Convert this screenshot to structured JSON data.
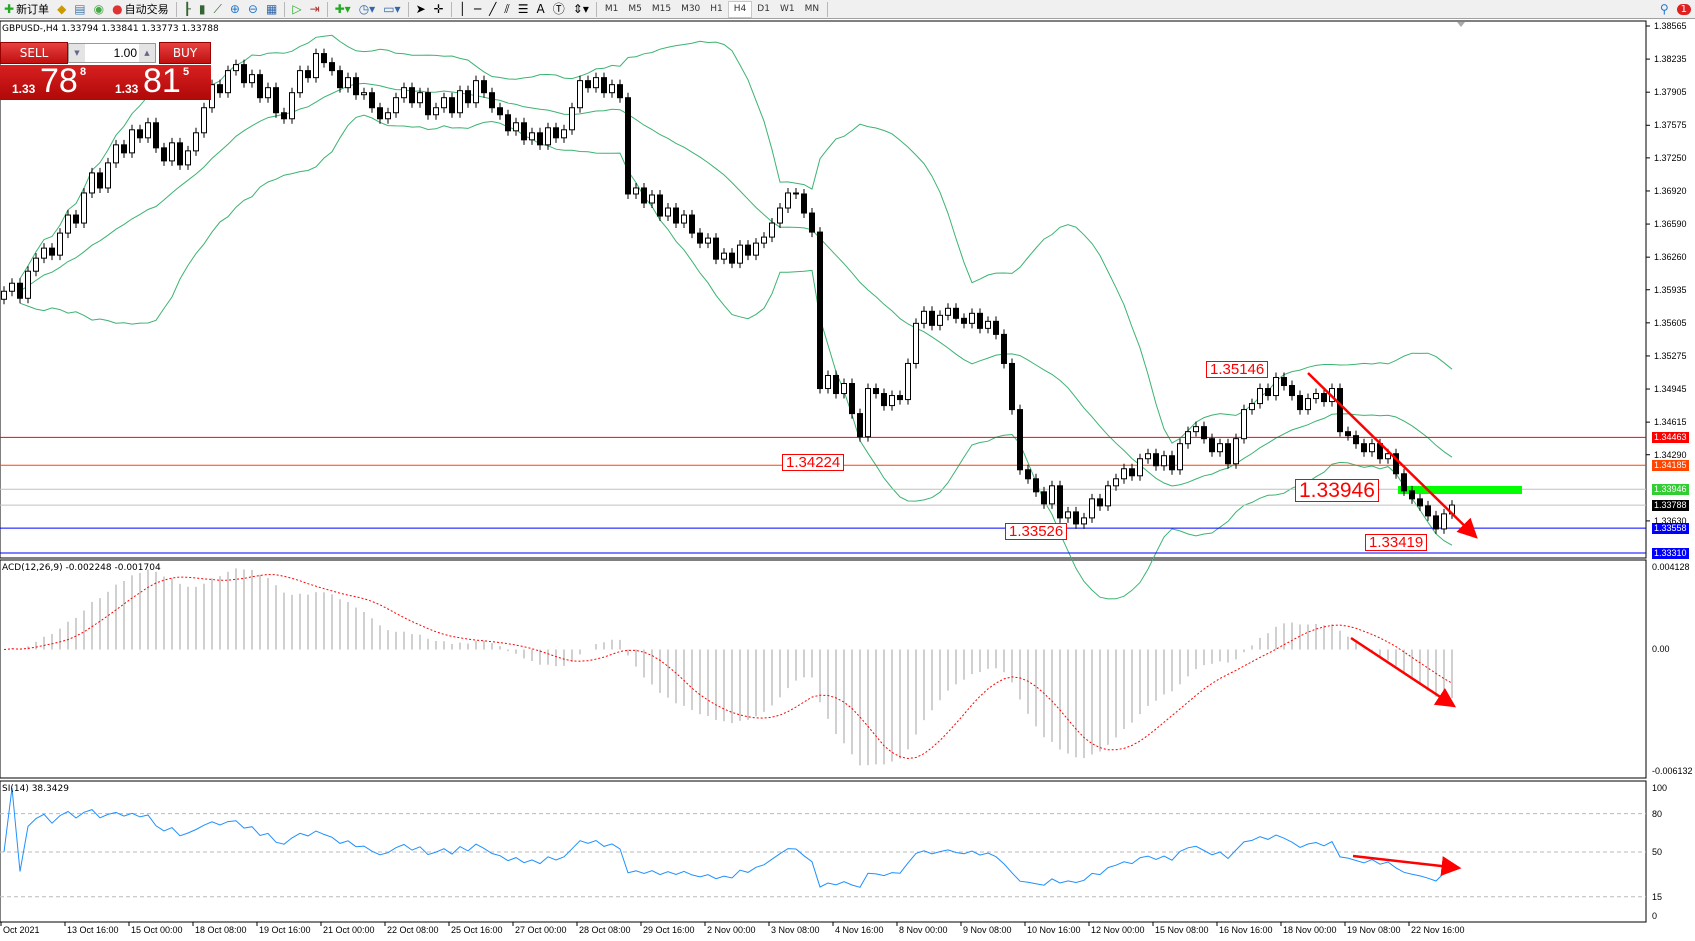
{
  "toolbar": {
    "new_order": "新订单",
    "auto_trading": "自动交易",
    "icons": [
      "new-order-icon",
      "market-watch-icon",
      "data-window-icon",
      "signals-icon",
      "auto-trading-icon",
      "bar-chart-icon",
      "candlestick-icon",
      "line-chart-icon",
      "zoom-in-icon",
      "zoom-out-icon",
      "tile-windows-icon",
      "chart-shift-icon",
      "autoscroll-icon",
      "indicators-icon",
      "periods-icon",
      "templates-icon",
      "cursor-icon",
      "crosshair-icon",
      "vertical-line-icon",
      "horizontal-line-icon",
      "trendline-icon",
      "equidistant-channel-icon",
      "fibonacci-icon",
      "text-icon",
      "text-label-icon",
      "arrows-icon"
    ],
    "timeframes": [
      "M1",
      "M5",
      "M15",
      "M30",
      "H1",
      "H4",
      "D1",
      "W1",
      "MN"
    ],
    "active_timeframe": "H4",
    "notification_count": "1"
  },
  "chart": {
    "header": "GBPUSD-,H4  1.33794 1.33841 1.33773 1.33788",
    "trade_panel": {
      "sell": "SELL",
      "buy": "BUY",
      "lot": "1.00",
      "bid_small": "1.33",
      "bid_big": "78",
      "bid_sup": "8",
      "ask_small": "1.33",
      "ask_big": "81",
      "ask_sup": "5"
    },
    "macd_label": "ACD(12,26,9) -0.002248 -0.001704",
    "rsi_label": "SI(14) 38.3429",
    "price_ticks": [
      "1.38565",
      "1.38235",
      "1.37905",
      "1.37575",
      "1.37250",
      "1.36920",
      "1.36590",
      "1.36260",
      "1.35935",
      "1.35605",
      "1.35275",
      "1.34945",
      "1.34615",
      "1.34290",
      "1.33630"
    ],
    "price_range": [
      1.3331,
      1.38565
    ],
    "hlines": [
      {
        "price": "1.34463",
        "color": "#ff0000",
        "label_bg": "#ff0000",
        "label_fg": "#ffffff"
      },
      {
        "price": "1.34185",
        "color": "#ff4500",
        "label_bg": "#ff4500",
        "label_fg": "#ffffff"
      },
      {
        "price": "1.33946",
        "color": "#c0c0c0",
        "label_bg": "#32cd32",
        "label_fg": "#ffffff"
      },
      {
        "price": "1.33788",
        "color": "#c0c0c0",
        "label_bg": "#000000",
        "label_fg": "#ffffff"
      },
      {
        "price": "1.33558",
        "color": "#0000ff",
        "label_bg": "#0000ff",
        "label_fg": "#ffffff"
      },
      {
        "price": "1.33310",
        "color": "#0000ff",
        "label_bg": "#0000ff",
        "label_fg": "#ffffff"
      }
    ],
    "annotations": [
      "1.35146",
      "1.34224",
      "1.33526",
      "1.33946",
      "1.33419"
    ],
    "macd_ticks": [
      "0.004128",
      "0.00",
      "-0.006132"
    ],
    "macd_range": [
      -0.006132,
      0.004128
    ],
    "rsi_ticks": [
      "100",
      "80",
      "50",
      "15",
      "0"
    ],
    "time_labels": [
      "Oct 2021",
      "13 Oct 16:00",
      "15 Oct 00:00",
      "18 Oct 08:00",
      "19 Oct 16:00",
      "21 Oct 00:00",
      "22 Oct 08:00",
      "25 Oct 16:00",
      "27 Oct 00:00",
      "28 Oct 08:00",
      "29 Oct 16:00",
      "2 Nov 00:00",
      "3 Nov 08:00",
      "4 Nov 16:00",
      "8 Nov 00:00",
      "9 Nov 08:00",
      "10 Nov 16:00",
      "12 Nov 00:00",
      "15 Nov 08:00",
      "16 Nov 16:00",
      "18 Nov 00:00",
      "19 Nov 08:00",
      "22 Nov 16:00"
    ],
    "colors": {
      "bands": "#3cb371",
      "macd_hist": "#c0c0c0",
      "macd_signal": "#ff0000",
      "rsi": "#1e90ff",
      "annotation": "#ff0000",
      "zone": "#00ff00"
    },
    "closes": [
      1.3592,
      1.36,
      1.3585,
      1.3612,
      1.3625,
      1.3635,
      1.3628,
      1.365,
      1.3668,
      1.366,
      1.369,
      1.371,
      1.3695,
      1.372,
      1.3738,
      1.373,
      1.3753,
      1.3745,
      1.376,
      1.3735,
      1.3722,
      1.374,
      1.3718,
      1.3732,
      1.375,
      1.3775,
      1.3798,
      1.379,
      1.3812,
      1.3818,
      1.38,
      1.3808,
      1.3785,
      1.3795,
      1.377,
      1.3764,
      1.379,
      1.3812,
      1.3805,
      1.3829,
      1.382,
      1.3812,
      1.3795,
      1.3805,
      1.3788,
      1.379,
      1.3775,
      1.3764,
      1.377,
      1.3785,
      1.3795,
      1.378,
      1.379,
      1.3768,
      1.3775,
      1.3785,
      1.377,
      1.3792,
      1.378,
      1.3802,
      1.379,
      1.3775,
      1.3768,
      1.3752,
      1.376,
      1.3743,
      1.375,
      1.3738,
      1.3755,
      1.3745,
      1.3753,
      1.3775,
      1.3802,
      1.3795,
      1.3805,
      1.379,
      1.3798,
      1.3785,
      1.3689,
      1.3695,
      1.368,
      1.3688,
      1.3667,
      1.3675,
      1.366,
      1.3668,
      1.365,
      1.364,
      1.3645,
      1.3624,
      1.363,
      1.362,
      1.3638,
      1.3628,
      1.364,
      1.3646,
      1.366,
      1.3675,
      1.369,
      1.3689,
      1.367,
      1.3651,
      1.3495,
      1.3508,
      1.349,
      1.35,
      1.347,
      1.3447,
      1.3495,
      1.349,
      1.3478,
      1.3488,
      1.3484,
      1.352,
      1.356,
      1.3572,
      1.3558,
      1.3568,
      1.3575,
      1.3565,
      1.356,
      1.357,
      1.3555,
      1.3562,
      1.3549,
      1.352,
      1.3474,
      1.3414,
      1.3405,
      1.3392,
      1.338,
      1.3398,
      1.3366,
      1.3372,
      1.336,
      1.3366,
      1.3385,
      1.3378,
      1.3398,
      1.3405,
      1.3415,
      1.3408,
      1.3425,
      1.343,
      1.3418,
      1.3428,
      1.3414,
      1.344,
      1.3452,
      1.3457,
      1.3445,
      1.3432,
      1.344,
      1.342,
      1.3445,
      1.3474,
      1.348,
      1.3495,
      1.3488,
      1.3506,
      1.3498,
      1.3488,
      1.3474,
      1.3485,
      1.349,
      1.3482,
      1.3495,
      1.3452,
      1.3448,
      1.344,
      1.3432,
      1.344,
      1.3425,
      1.343,
      1.341,
      1.3393,
      1.3385,
      1.3378,
      1.3368,
      1.3355,
      1.337,
      1.33788
    ]
  }
}
